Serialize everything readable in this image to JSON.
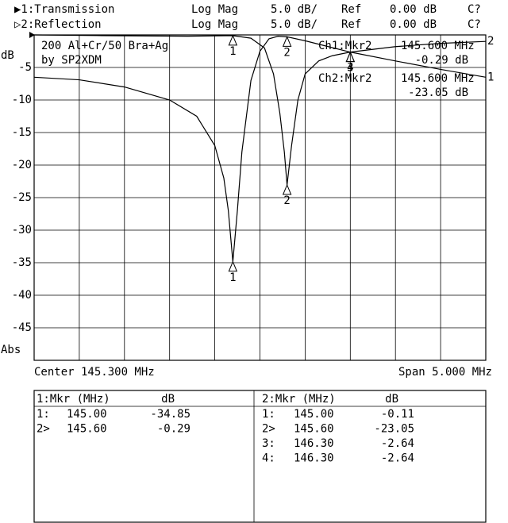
{
  "chart_data": {
    "type": "line",
    "header": [
      [
        "▶1:Transmission",
        "Log Mag",
        "5.0 dB/",
        "Ref",
        "0.00 dB",
        "C?"
      ],
      [
        "▷2:Reflection",
        "Log Mag",
        "5.0 dB/",
        "Ref",
        "0.00 dB",
        "C?"
      ]
    ],
    "annotations": [
      "200 Al+Cr/50 Bra+Ag",
      "by SP2XDM"
    ],
    "readouts": [
      [
        "Ch1:Mkr2",
        "145.600 MHz",
        "-0.29 dB"
      ],
      [
        "Ch2:Mkr2",
        "145.600 MHz",
        "-23.05 dB"
      ]
    ],
    "y_unit_label": "dB",
    "y_mode_label": "Abs",
    "ylim": [
      -50,
      0
    ],
    "yticks": [
      -5,
      -10,
      -15,
      -20,
      -25,
      -30,
      -35,
      -40,
      -45
    ],
    "xlim": [
      142.8,
      147.8
    ],
    "center_label": "Center 145.300 MHz",
    "span_label": "Span 5.000 MHz",
    "grid": true,
    "series": [
      {
        "trace_label": "1",
        "color": "#000000",
        "x": [
          142.8,
          143.3,
          143.8,
          144.3,
          144.6,
          144.8,
          144.9,
          144.95,
          145.0,
          145.05,
          145.1,
          145.2,
          145.3,
          145.4,
          145.5,
          145.6,
          145.8,
          146.0,
          146.3,
          146.8,
          147.3,
          147.8
        ],
        "values": [
          -6.5,
          -6.9,
          -8,
          -10,
          -12.5,
          -17,
          -22,
          -27,
          -34.85,
          -27,
          -18,
          -7,
          -2.5,
          -0.6,
          -0.2,
          -0.29,
          -0.9,
          -1.6,
          -2.64,
          -4,
          -5.3,
          -6.5
        ],
        "markers": [
          {
            "label": "1",
            "x": 145.0,
            "value": -34.85
          },
          {
            "label": "2",
            "x": 145.6,
            "value": -0.29
          }
        ]
      },
      {
        "trace_label": "2",
        "color": "#000000",
        "x": [
          142.8,
          143.5,
          144.5,
          145.0,
          145.2,
          145.35,
          145.45,
          145.52,
          145.57,
          145.6,
          145.65,
          145.72,
          145.8,
          145.95,
          146.1,
          146.3,
          146.8,
          147.3,
          147.8
        ],
        "values": [
          0,
          -0.1,
          -0.2,
          -0.11,
          -0.5,
          -2,
          -6,
          -12,
          -18,
          -23.05,
          -17,
          -10,
          -6,
          -4,
          -3.2,
          -2.64,
          -1.8,
          -1.3,
          -1.0
        ],
        "markers": [
          {
            "label": "1",
            "x": 145.0,
            "value": -0.11
          },
          {
            "label": "2",
            "x": 145.6,
            "value": -23.05
          },
          {
            "label": "3",
            "x": 146.3,
            "value": -2.64
          },
          {
            "label": "4",
            "x": 146.3,
            "value": -2.64
          }
        ]
      }
    ],
    "tables": [
      {
        "header": [
          "1:Mkr (MHz)",
          "dB"
        ],
        "rows": [
          [
            "1:",
            "145.00",
            "-34.85"
          ],
          [
            "2>",
            "145.60",
            "-0.29"
          ]
        ]
      },
      {
        "header": [
          "2:Mkr (MHz)",
          "dB"
        ],
        "rows": [
          [
            "1:",
            "145.00",
            "-0.11"
          ],
          [
            "2>",
            "145.60",
            "-23.05"
          ],
          [
            "3:",
            "146.30",
            "-2.64"
          ],
          [
            "4:",
            "146.30",
            "-2.64"
          ]
        ]
      }
    ]
  }
}
